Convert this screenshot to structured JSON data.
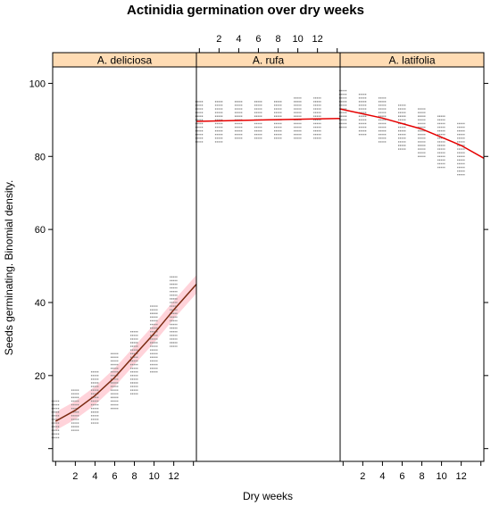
{
  "chart_data": {
    "type": "scatter",
    "title": "Actinidia germination over dry weeks",
    "xlabel": "Dry weeks",
    "ylabel": "Seeds germinating.  Binomial density.",
    "x_ticks": [
      2,
      4,
      6,
      8,
      10,
      12
    ],
    "y_ticks": [
      20,
      40,
      60,
      80,
      100
    ],
    "xlim": [
      -0.3,
      14.3
    ],
    "ylim": [
      -3.5,
      104.5
    ],
    "point_color": "#8c8c8c",
    "fit_color": "#e60000",
    "band_color": "#ffb6c1",
    "strip_color": "#ffdcb4",
    "panels": [
      {
        "name": "A. deliciosa",
        "series": [
          {
            "x": 0,
            "low": 3,
            "high": 13
          },
          {
            "x": 2,
            "low": 5,
            "high": 16
          },
          {
            "x": 4,
            "low": 7,
            "high": 21
          },
          {
            "x": 6,
            "low": 11,
            "high": 26
          },
          {
            "x": 8,
            "low": 15,
            "high": 32
          },
          {
            "x": 10,
            "low": 21,
            "high": 39
          },
          {
            "x": 12,
            "low": 28,
            "high": 47
          }
        ],
        "fit": [
          {
            "x": 0,
            "y": 7.5
          },
          {
            "x": 2,
            "y": 10.5
          },
          {
            "x": 4,
            "y": 14.5
          },
          {
            "x": 6,
            "y": 19.5
          },
          {
            "x": 8,
            "y": 25.5
          },
          {
            "x": 10,
            "y": 31.5
          },
          {
            "x": 12,
            "y": 38
          },
          {
            "x": 14.3,
            "y": 45
          }
        ]
      },
      {
        "name": "A. rufa",
        "series": [
          {
            "x": 0,
            "low": 84,
            "high": 95
          },
          {
            "x": 2,
            "low": 84,
            "high": 95
          },
          {
            "x": 4,
            "low": 85,
            "high": 95
          },
          {
            "x": 6,
            "low": 85,
            "high": 95
          },
          {
            "x": 8,
            "low": 85,
            "high": 95
          },
          {
            "x": 10,
            "low": 85,
            "high": 96
          },
          {
            "x": 12,
            "low": 85,
            "high": 96
          }
        ],
        "fit": [
          {
            "x": -0.3,
            "y": 89.6
          },
          {
            "x": 7,
            "y": 90.0
          },
          {
            "x": 14.3,
            "y": 90.4
          }
        ]
      },
      {
        "name": "A. latifolia",
        "series": [
          {
            "x": 0,
            "low": 88,
            "high": 98
          },
          {
            "x": 2,
            "low": 86,
            "high": 97
          },
          {
            "x": 4,
            "low": 84,
            "high": 96
          },
          {
            "x": 6,
            "low": 82,
            "high": 94
          },
          {
            "x": 8,
            "low": 80,
            "high": 93
          },
          {
            "x": 10,
            "low": 77,
            "high": 91
          },
          {
            "x": 12,
            "low": 75,
            "high": 89
          }
        ],
        "fit": [
          {
            "x": -0.3,
            "y": 93
          },
          {
            "x": 4,
            "y": 90.5
          },
          {
            "x": 8,
            "y": 87.5
          },
          {
            "x": 12,
            "y": 83
          },
          {
            "x": 14.3,
            "y": 79.5
          }
        ]
      }
    ]
  }
}
